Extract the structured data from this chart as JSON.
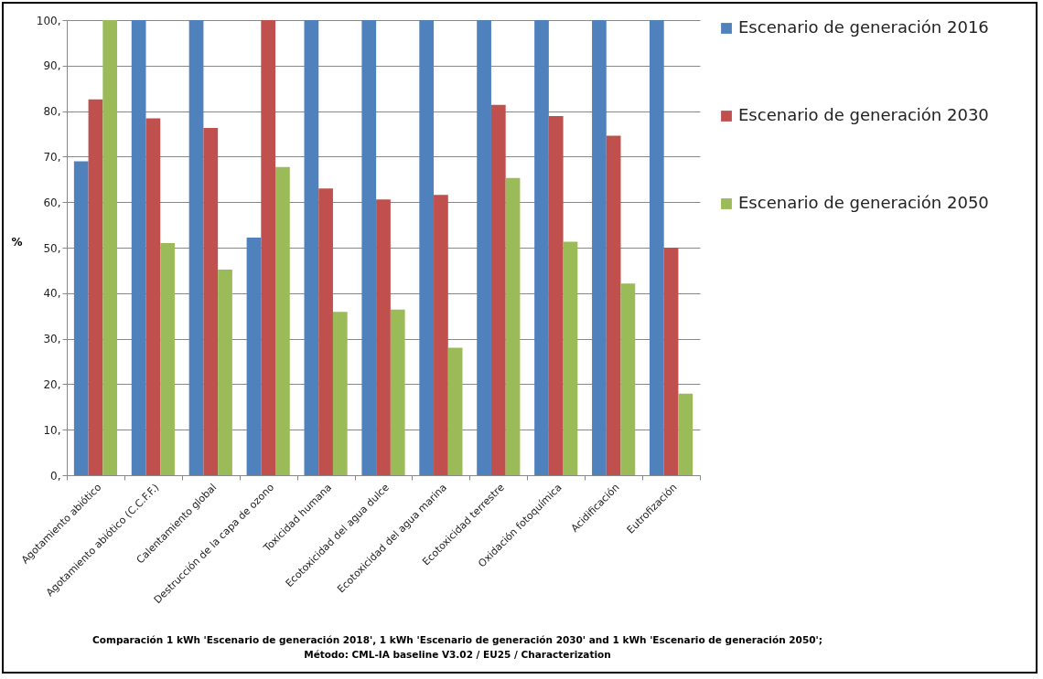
{
  "chart_data": {
    "type": "bar",
    "ylabel": "%",
    "categories": [
      "Agotamiento abiótico",
      "Agotamiento abiótico (C.C.F.F.)",
      "Calentamiento global",
      "Destrucción de la capa de ozono",
      "Toxicidad humana",
      "Ecotoxicidad del agua dulce",
      "Ecotoxicidad del agua marina",
      "Ecotoxicidad terrestre",
      "Oxidación fotoquímica",
      "Acidificación",
      "Eutrofización"
    ],
    "series": [
      {
        "name": "Escenario de generación 2016",
        "color": "#4f81bd",
        "values": [
          69,
          100,
          100,
          52.2,
          100,
          100,
          100,
          100,
          100,
          100,
          100
        ]
      },
      {
        "name": "Escenario de generación 2030",
        "color": "#c0504d",
        "values": [
          82.6,
          78.4,
          76.3,
          100,
          63,
          60.6,
          61.6,
          81.4,
          78.9,
          74.6,
          50
        ]
      },
      {
        "name": "Escenario de generación 2050",
        "color": "#9bbb59",
        "values": [
          100,
          51,
          45.2,
          67.7,
          35.9,
          36.4,
          28,
          65.3,
          51.3,
          42.1,
          17.9
        ]
      }
    ],
    "ylim": [
      0,
      100
    ],
    "yticks": [
      {
        "value": 0,
        "label": "0,"
      },
      {
        "value": 10,
        "label": "10,"
      },
      {
        "value": 20,
        "label": "20,"
      },
      {
        "value": 30,
        "label": "30,"
      },
      {
        "value": 40,
        "label": "40,"
      },
      {
        "value": 50,
        "label": "50,"
      },
      {
        "value": 60,
        "label": "60,"
      },
      {
        "value": 70,
        "label": "70,"
      },
      {
        "value": 80,
        "label": "80,"
      },
      {
        "value": 90,
        "label": "90,"
      },
      {
        "value": 100,
        "label": "100,"
      }
    ],
    "grid": "y",
    "legend": "right",
    "annotations": [
      "Comparación 1 kWh 'Escenario de generación 2018', 1 kWh 'Escenario de generación 2030' and 1 kWh 'Escenario de generación 2050';",
      "Método: CML-IA baseline V3.02 / EU25 / Characterization"
    ]
  }
}
